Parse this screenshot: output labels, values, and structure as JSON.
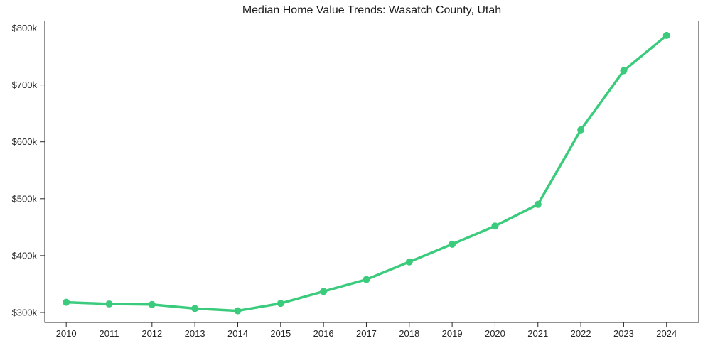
{
  "chart_data": {
    "type": "line",
    "title": "Median Home Value Trends: Wasatch County, Utah",
    "series": [
      {
        "name": "Median home value",
        "x": [
          2010,
          2011,
          2012,
          2013,
          2014,
          2015,
          2016,
          2017,
          2018,
          2019,
          2020,
          2021,
          2022,
          2023,
          2024
        ],
        "values": [
          318000,
          315000,
          314000,
          307000,
          303000,
          316000,
          337000,
          358000,
          389000,
          420000,
          452000,
          490000,
          621000,
          725000,
          787000
        ],
        "color": "#3bcb7c",
        "marker": "circle"
      }
    ],
    "xlabel": "",
    "ylabel": "",
    "xtick_labels": [
      "2010",
      "2011",
      "2012",
      "2013",
      "2014",
      "2015",
      "2016",
      "2017",
      "2018",
      "2019",
      "2020",
      "2021",
      "2022",
      "2023",
      "2024"
    ],
    "yticks": [
      {
        "value": 300000,
        "label": "$300k"
      },
      {
        "value": 400000,
        "label": "$400k"
      },
      {
        "value": 500000,
        "label": "$500k"
      },
      {
        "value": 600000,
        "label": "$600k"
      },
      {
        "value": 700000,
        "label": "$700k"
      },
      {
        "value": 800000,
        "label": "$800k"
      }
    ],
    "xlim": [
      2009.5,
      2024.75
    ],
    "ylim": [
      282500,
      812500
    ],
    "grid": false,
    "legend": "none",
    "axis_color": "#262626",
    "background_color": "#ffffff"
  }
}
